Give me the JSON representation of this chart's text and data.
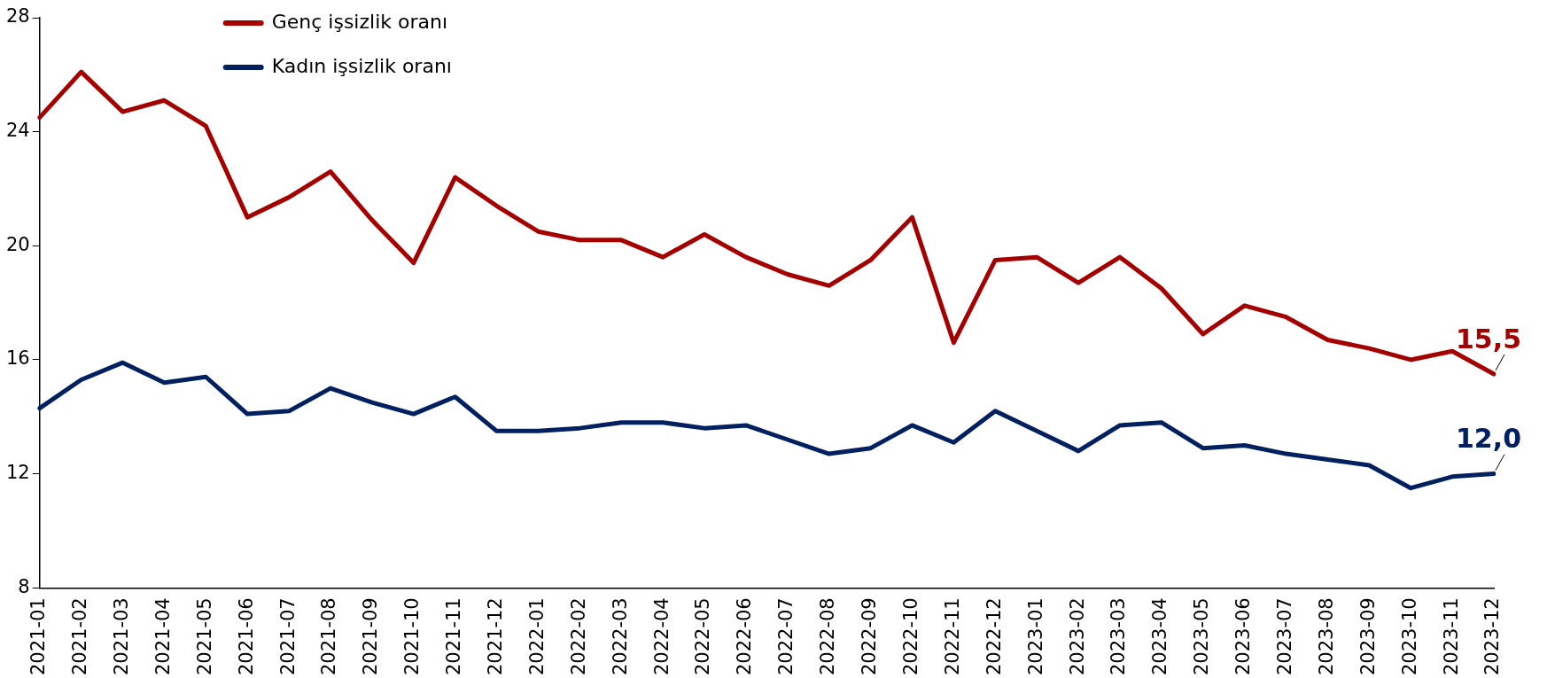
{
  "chart_data": {
    "type": "line",
    "categories": [
      "2021-01",
      "2021-02",
      "2021-03",
      "2021-04",
      "2021-05",
      "2021-06",
      "2021-07",
      "2021-08",
      "2021-09",
      "2021-10",
      "2021-11",
      "2021-12",
      "2022-01",
      "2022-02",
      "2022-03",
      "2022-04",
      "2022-05",
      "2022-06",
      "2022-07",
      "2022-08",
      "2022-09",
      "2022-10",
      "2022-11",
      "2022-12",
      "2023-01",
      "2023-02",
      "2023-03",
      "2023-04",
      "2023-05",
      "2023-06",
      "2023-07",
      "2023-08",
      "2023-09",
      "2023-10",
      "2023-11",
      "2023-12"
    ],
    "series": [
      {
        "name": "Genç işsizlik oranı",
        "color": "#a50000",
        "values": [
          24.5,
          26.1,
          24.7,
          25.1,
          24.2,
          21.0,
          21.7,
          22.6,
          20.9,
          19.4,
          22.4,
          21.4,
          20.5,
          20.2,
          20.2,
          19.6,
          20.4,
          19.6,
          19.0,
          18.6,
          19.5,
          21.0,
          16.6,
          19.5,
          19.6,
          18.7,
          19.6,
          18.5,
          16.9,
          17.9,
          17.5,
          16.7,
          16.4,
          16.0,
          16.3,
          15.5
        ],
        "value_labels": [
          null,
          null,
          null,
          null,
          null,
          null,
          null,
          null,
          null,
          null,
          null,
          null,
          null,
          null,
          null,
          null,
          null,
          null,
          null,
          null,
          null,
          null,
          null,
          null,
          null,
          null,
          null,
          null,
          null,
          null,
          null,
          null,
          null,
          null,
          null,
          "15,5"
        ]
      },
      {
        "name": "Kadın işsizlik oranı",
        "color": "#002060",
        "values": [
          14.3,
          15.3,
          15.9,
          15.2,
          15.4,
          14.1,
          14.2,
          15.0,
          14.5,
          14.1,
          14.7,
          13.5,
          13.5,
          13.6,
          13.8,
          13.8,
          13.6,
          13.7,
          13.2,
          12.7,
          12.9,
          13.7,
          13.1,
          14.2,
          13.5,
          12.8,
          13.7,
          13.8,
          12.9,
          13.0,
          12.7,
          12.5,
          12.3,
          11.5,
          11.9,
          12.0
        ],
        "value_labels": [
          null,
          null,
          null,
          null,
          null,
          null,
          null,
          null,
          null,
          null,
          null,
          null,
          null,
          null,
          null,
          null,
          null,
          null,
          null,
          null,
          null,
          null,
          null,
          null,
          null,
          null,
          null,
          null,
          null,
          null,
          null,
          null,
          null,
          null,
          null,
          "12,0"
        ]
      }
    ],
    "ylim": [
      8,
      28
    ],
    "yticks": [
      8,
      12,
      16,
      20,
      24,
      28
    ],
    "grid": false,
    "legend": "top left",
    "marker": "none",
    "line_style": "solid"
  }
}
